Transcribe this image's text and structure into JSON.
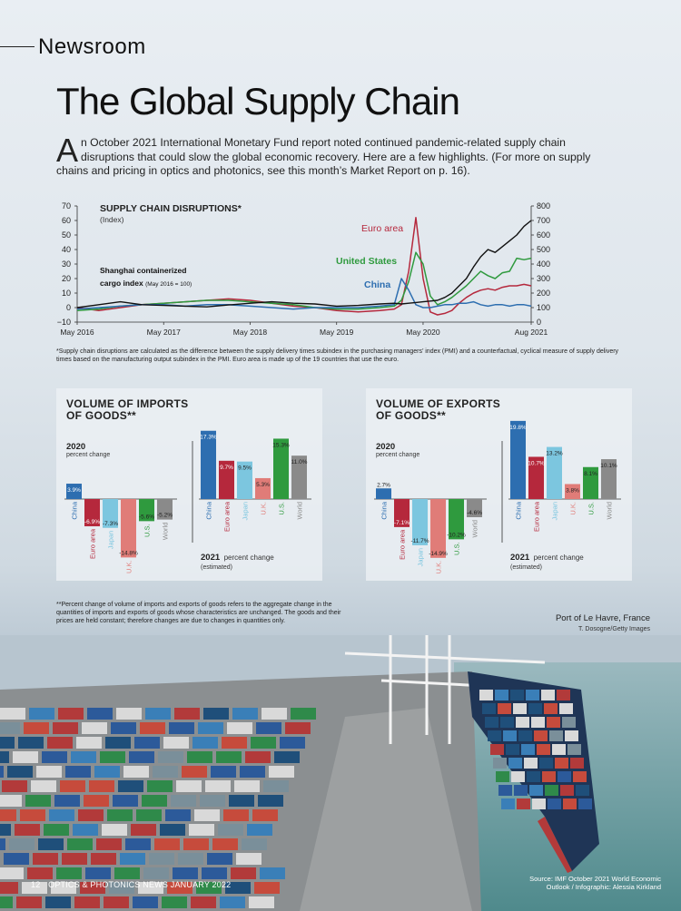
{
  "header": {
    "section": "Newsroom",
    "title": "The Global Supply Chain"
  },
  "intro": {
    "dropcap": "A",
    "text": "n October 2021 International Monetary Fund report noted continued pandemic-related supply chain disruptions that could slow the global economic recovery. Here are a few highlights. (For more on supply chains and pricing in optics and photonics, see this month’s Market Report on p. 16)."
  },
  "colors": {
    "euro": "#b5283c",
    "us": "#2f9a3e",
    "china": "#2d6eb0",
    "shanghai": "#111111",
    "japan": "#7cc6df",
    "uk": "#e07c78",
    "world": "#8a8a8a"
  },
  "chart1": {
    "title": "SUPPLY CHAIN DISRUPTIONS*",
    "subtitle": "(Index)",
    "shanghai_label": "Shanghai containerized",
    "shanghai_label2": "cargo index",
    "shanghai_note": "(May 2016 = 100)",
    "series_labels": {
      "euro": "Euro area",
      "us": "United States",
      "china": "China"
    },
    "footnote": "*Supply chain disruptions are calculated as the difference between the supply delivery times subindex in the purchasing managers’ index (PMI) and a counterfactual, cyclical measure of supply delivery times based on the manufacturing output subindex in the PMI. Euro area is made up of the 19 countries that use the euro."
  },
  "imports": {
    "title1": "VOLUME OF IMPORTS",
    "title2": "OF GOODS**",
    "year2020": "2020",
    "pc2020": "percent change",
    "year2021": "2021",
    "pc2021": "percent change",
    "est": "(estimated)"
  },
  "exports": {
    "title1": "VOLUME OF EXPORTS",
    "title2": "OF GOODS**",
    "year2020": "2020",
    "pc2020": "percent change",
    "year2021": "2021",
    "pc2021": "percent change",
    "est": "(estimated)"
  },
  "note": "**Percent change of volume of imports and exports of goods refers to the aggregate change in the quantities of imports and exports of goods whose characteristics are unchanged. The goods and their prices are held constant; therefore changes are due to changes in quantities only.",
  "photo": {
    "caption": "Port of Le Havre, France",
    "credit": "T. Dosogne/Getty Images"
  },
  "footer": {
    "page": "12",
    "pub": "OPTICS & PHOTONICS NEWS  JANUARY 2022"
  },
  "source": {
    "line1": "Source: IMF October 2021 World Economic",
    "line2": "Outlook / Infographic: Alessia Kirkland"
  },
  "chart_data": [
    {
      "type": "line",
      "title": "SUPPLY CHAIN DISRUPTIONS*",
      "ylabel": "(Index)",
      "ylim": [
        -10,
        70
      ],
      "y2lim": [
        0,
        800
      ],
      "yticks": [
        -10,
        0,
        10,
        20,
        30,
        40,
        50,
        60,
        70
      ],
      "y2ticks": [
        0,
        100,
        200,
        300,
        400,
        500,
        600,
        700,
        800
      ],
      "xlim": [
        0,
        63
      ],
      "xticks": [
        {
          "x": 0,
          "label": "May 2016"
        },
        {
          "x": 12,
          "label": "May 2017"
        },
        {
          "x": 24,
          "label": "May 2018"
        },
        {
          "x": 36,
          "label": "May 2019"
        },
        {
          "x": 48,
          "label": "May 2020"
        },
        {
          "x": 63,
          "label": "Aug 2021"
        }
      ],
      "x": [
        0,
        3,
        6,
        9,
        12,
        15,
        18,
        21,
        24,
        27,
        30,
        33,
        36,
        39,
        42,
        44,
        45,
        46,
        47,
        48,
        49,
        50,
        51,
        52,
        53,
        54,
        55,
        56,
        57,
        58,
        59,
        60,
        61,
        62,
        63
      ],
      "series": [
        {
          "name": "Euro area",
          "key": "euro",
          "axis": "left",
          "values": [
            0,
            -2,
            0,
            2,
            3,
            4,
            5,
            6,
            5,
            3,
            1,
            0,
            -2,
            -3,
            -2,
            -1,
            2,
            25,
            62,
            20,
            -3,
            -5,
            -4,
            -2,
            3,
            7,
            10,
            12,
            13,
            12,
            14,
            15,
            15,
            16,
            15
          ]
        },
        {
          "name": "United States",
          "key": "us",
          "axis": "left",
          "values": [
            -2,
            -1,
            1,
            2,
            3,
            4,
            5,
            5,
            4,
            3,
            2,
            0,
            -1,
            -1,
            0,
            1,
            5,
            18,
            38,
            30,
            8,
            2,
            4,
            7,
            11,
            15,
            20,
            25,
            22,
            20,
            24,
            25,
            34,
            33,
            34
          ]
        },
        {
          "name": "China",
          "key": "china",
          "axis": "left",
          "values": [
            -1,
            0,
            1,
            2,
            2,
            1,
            2,
            2,
            1,
            0,
            -1,
            0,
            0,
            0,
            1,
            2,
            20,
            12,
            2,
            0,
            0,
            1,
            2,
            2,
            3,
            3,
            4,
            2,
            1,
            2,
            2,
            1,
            2,
            2,
            1
          ]
        },
        {
          "name": "Shanghai containerized cargo index",
          "key": "shanghai",
          "axis": "right",
          "values": [
            100,
            120,
            140,
            120,
            115,
            110,
            105,
            118,
            130,
            140,
            130,
            125,
            110,
            115,
            125,
            130,
            125,
            130,
            135,
            140,
            145,
            150,
            170,
            200,
            250,
            300,
            380,
            450,
            500,
            480,
            520,
            560,
            600,
            660,
            700
          ]
        }
      ]
    },
    {
      "type": "bar",
      "title": "VOLUME OF IMPORTS OF GOODS**",
      "panels": [
        {
          "year": "2020",
          "categories": [
            "China",
            "Euro area",
            "Japan",
            "U.K.",
            "U.S.",
            "World"
          ],
          "values": [
            3.9,
            -6.9,
            -7.3,
            -14.8,
            -5.6,
            -5.2
          ],
          "labels": [
            "3.9%",
            "-6.9%",
            "-7.3%",
            "-14.8%",
            "-5.6%",
            "-5.2%"
          ]
        },
        {
          "year": "2021",
          "categories": [
            "China",
            "Euro area",
            "Japan",
            "U.K.",
            "U.S.",
            "World"
          ],
          "values": [
            17.3,
            9.7,
            9.5,
            5.3,
            15.3,
            11.0
          ],
          "labels": [
            "17.3%",
            "9.7%",
            "9.5%",
            "5.3%",
            "15.3%",
            "11.0%"
          ]
        }
      ]
    },
    {
      "type": "bar",
      "title": "VOLUME OF EXPORTS OF GOODS**",
      "panels": [
        {
          "year": "2020",
          "categories": [
            "China",
            "Euro area",
            "Japan",
            "U.K.",
            "U.S.",
            "World"
          ],
          "values": [
            2.7,
            -7.1,
            -11.7,
            -14.9,
            -10.2,
            -4.6
          ],
          "labels": [
            "2.7%",
            "-7.1%",
            "-11.7%",
            "-14.9%",
            "-10.2%",
            "-4.6%"
          ]
        },
        {
          "year": "2021",
          "categories": [
            "China",
            "Euro area",
            "Japan",
            "U.K.",
            "U.S.",
            "World"
          ],
          "values": [
            19.8,
            10.7,
            13.2,
            3.8,
            8.1,
            10.1
          ],
          "labels": [
            "19.8%",
            "10.7%",
            "13.2%",
            "3.8%",
            "8.1%",
            "10.1%"
          ]
        }
      ]
    }
  ]
}
